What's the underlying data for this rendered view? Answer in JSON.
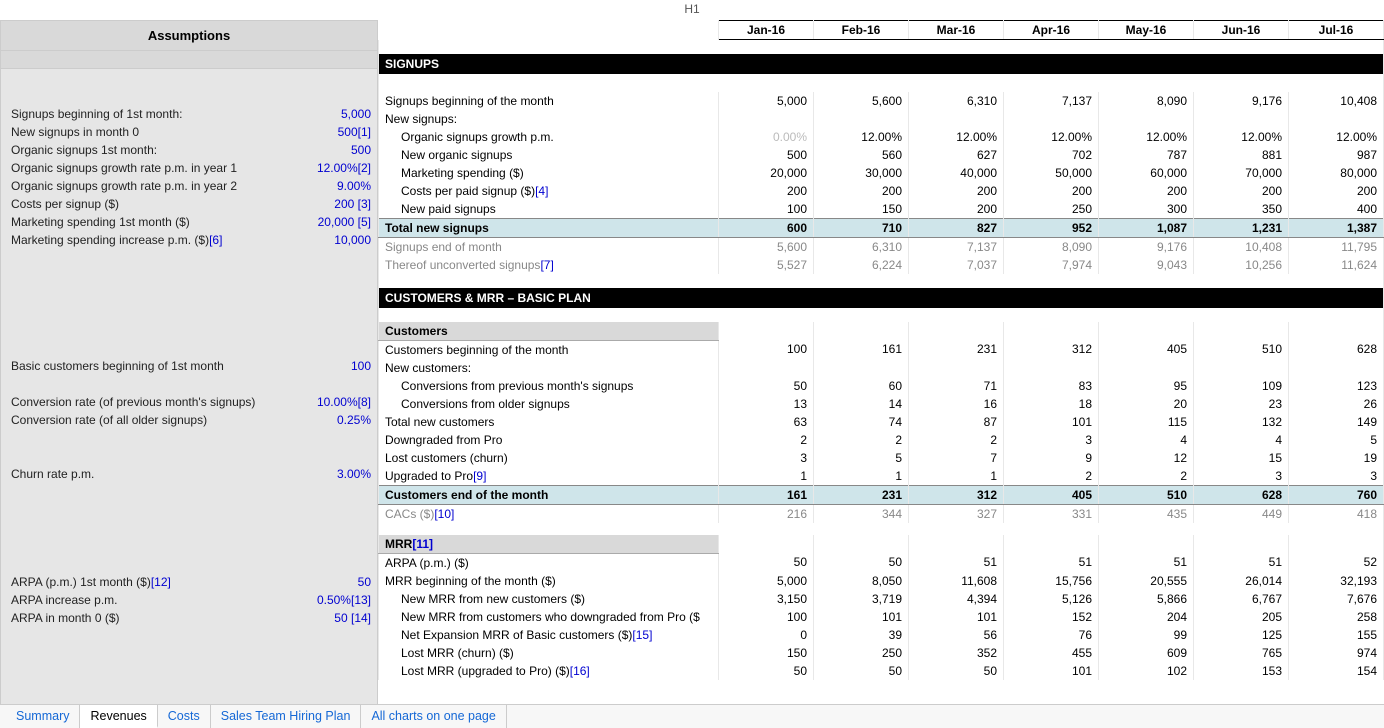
{
  "header": {
    "cell_reference": "H1"
  },
  "assumptions": {
    "title": "Assumptions",
    "rows": [
      {
        "label": "Signups beginning of 1st month:",
        "value": "5,000",
        "footnote": null
      },
      {
        "label": "New signups in month 0",
        "value": "500",
        "footnote": "[1]"
      },
      {
        "label": "Organic signups 1st month:",
        "value": "500",
        "footnote": null
      },
      {
        "label": "Organic signups growth rate p.m. in year 1",
        "value": "12.00%",
        "footnote": "[2]"
      },
      {
        "label": "Organic signups growth rate p.m. in year 2",
        "value": "9.00%",
        "footnote": null
      },
      {
        "label": "Costs per signup ($)",
        "value": "200",
        "footnote": "[3]"
      },
      {
        "label": "Marketing spending 1st month ($)",
        "value": "20,000",
        "footnote": "[5]"
      },
      {
        "label": "Marketing spending increase p.m. ($)",
        "label_footnote": "[6]",
        "value": "10,000",
        "footnote": null
      }
    ],
    "group2": [
      {
        "label": "Basic customers beginning of 1st month",
        "value": "100",
        "footnote": null
      }
    ],
    "group3": [
      {
        "label": "Conversion rate (of previous month's signups)",
        "value": "10.00%",
        "footnote": "[8]"
      },
      {
        "label": "Conversion rate (of all older signups)",
        "value": "0.25%",
        "footnote": null
      }
    ],
    "group4": [
      {
        "label": "Churn rate p.m.",
        "value": "3.00%",
        "footnote": null
      }
    ],
    "group5": [
      {
        "label": "ARPA (p.m.) 1st month ($)",
        "label_footnote": "[12]",
        "value": "50",
        "footnote": null
      },
      {
        "label": "ARPA increase p.m.",
        "value": "0.50%",
        "footnote": "[13]"
      },
      {
        "label": "ARPA in month 0 ($)",
        "value": "50",
        "footnote": "[14]"
      }
    ]
  },
  "months": [
    "Jan-16",
    "Feb-16",
    "Mar-16",
    "Apr-16",
    "May-16",
    "Jun-16",
    "Jul-16"
  ],
  "signups": {
    "section_title": "SIGNUPS",
    "rows": {
      "begin": {
        "label": "Signups beginning of the month",
        "vals": [
          "5,000",
          "5,600",
          "6,310",
          "7,137",
          "8,090",
          "9,176",
          "10,408"
        ]
      },
      "newlabel": {
        "label": "New signups:"
      },
      "growth": {
        "label": "Organic signups growth p.m.",
        "vals": [
          "0.00%",
          "12.00%",
          "12.00%",
          "12.00%",
          "12.00%",
          "12.00%",
          "12.00%"
        ],
        "first_grey": true
      },
      "neworg": {
        "label": "New organic signups",
        "vals": [
          "500",
          "560",
          "627",
          "702",
          "787",
          "881",
          "987"
        ]
      },
      "mkt": {
        "label": "Marketing spending ($)",
        "vals": [
          "20,000",
          "30,000",
          "40,000",
          "50,000",
          "60,000",
          "70,000",
          "80,000"
        ]
      },
      "cps": {
        "label": "Costs per paid signup ($)",
        "label_footnote": "[4]",
        "vals": [
          "200",
          "200",
          "200",
          "200",
          "200",
          "200",
          "200"
        ]
      },
      "newpaid": {
        "label": "New paid signups",
        "vals": [
          "100",
          "150",
          "200",
          "250",
          "300",
          "350",
          "400"
        ]
      },
      "total": {
        "label": "Total new signups",
        "vals": [
          "600",
          "710",
          "827",
          "952",
          "1,087",
          "1,231",
          "1,387"
        ]
      },
      "end": {
        "label": "Signups end of month",
        "vals": [
          "5,600",
          "6,310",
          "7,137",
          "8,090",
          "9,176",
          "10,408",
          "11,795"
        ]
      },
      "unconv": {
        "label": "Thereof unconverted signups",
        "label_footnote": "[7]",
        "vals": [
          "5,527",
          "6,224",
          "7,037",
          "7,974",
          "9,043",
          "10,256",
          "11,624"
        ]
      }
    }
  },
  "customers": {
    "section_title": "CUSTOMERS & MRR – BASIC PLAN",
    "sub_title": "Customers",
    "rows": {
      "begin": {
        "label": "Customers beginning of the month",
        "vals": [
          "100",
          "161",
          "231",
          "312",
          "405",
          "510",
          "628"
        ]
      },
      "newlabel": {
        "label": "New customers:"
      },
      "convprev": {
        "label": "Conversions from previous month's signups",
        "vals": [
          "50",
          "60",
          "71",
          "83",
          "95",
          "109",
          "123"
        ]
      },
      "convold": {
        "label": "Conversions from older signups",
        "vals": [
          "13",
          "14",
          "16",
          "18",
          "20",
          "23",
          "26"
        ]
      },
      "totalnew": {
        "label": "Total new customers",
        "vals": [
          "63",
          "74",
          "87",
          "101",
          "115",
          "132",
          "149"
        ]
      },
      "down": {
        "label": "Downgraded from Pro",
        "vals": [
          "2",
          "2",
          "2",
          "3",
          "4",
          "4",
          "5"
        ]
      },
      "churn": {
        "label": "Lost customers (churn)",
        "vals": [
          "3",
          "5",
          "7",
          "9",
          "12",
          "15",
          "19"
        ]
      },
      "up": {
        "label": "Upgraded to Pro",
        "label_footnote": "[9]",
        "vals": [
          "1",
          "1",
          "1",
          "2",
          "2",
          "3",
          "3"
        ]
      },
      "end": {
        "label": "Customers end of the month",
        "vals": [
          "161",
          "231",
          "312",
          "405",
          "510",
          "628",
          "760"
        ]
      },
      "cac": {
        "label": "CACs ($)",
        "label_footnote": "[10]",
        "vals": [
          "216",
          "344",
          "327",
          "331",
          "435",
          "449",
          "418"
        ]
      }
    }
  },
  "mrr": {
    "sub_title": "MRR",
    "sub_footnote": "[11]",
    "rows": {
      "arpa": {
        "label": "ARPA (p.m.) ($)",
        "vals": [
          "50",
          "50",
          "51",
          "51",
          "51",
          "51",
          "52"
        ]
      },
      "begin": {
        "label": "MRR beginning of the month  ($)",
        "vals": [
          "5,000",
          "8,050",
          "11,608",
          "15,756",
          "20,555",
          "26,014",
          "32,193"
        ]
      },
      "newcust": {
        "label": "New MRR from new customers ($)",
        "vals": [
          "3,150",
          "3,719",
          "4,394",
          "5,126",
          "5,866",
          "6,767",
          "7,676"
        ]
      },
      "down": {
        "label": "New MRR from customers who downgraded from Pro ($",
        "vals": [
          "100",
          "101",
          "101",
          "152",
          "204",
          "205",
          "258"
        ]
      },
      "netexp": {
        "label": "Net Expansion MRR of Basic customers ($)",
        "label_footnote": "[15]",
        "vals": [
          "0",
          "39",
          "56",
          "76",
          "99",
          "125",
          "155"
        ]
      },
      "lost": {
        "label": "Lost MRR (churn) ($)",
        "vals": [
          "150",
          "250",
          "352",
          "455",
          "609",
          "765",
          "974"
        ]
      },
      "lostup": {
        "label": "Lost MRR (upgraded to Pro) ($)",
        "label_footnote": "[16]",
        "vals": [
          "50",
          "50",
          "50",
          "101",
          "102",
          "153",
          "154"
        ]
      }
    }
  },
  "tabs": {
    "items": [
      "Summary",
      "Revenues",
      "Costs",
      "Sales Team Hiring Plan",
      "All charts on one page"
    ],
    "active_index": 1
  },
  "styling": {
    "left_bg": "#e6e6e6",
    "header_bg": "#d9d9d9",
    "section_bg": "#000000",
    "section_fg": "#ffffff",
    "highlight_bg": "#cfe5ea",
    "value_color": "#0000d0",
    "link_color": "#1568d6",
    "grey_text": "#888888",
    "grid_border": "#e8e8e8"
  }
}
